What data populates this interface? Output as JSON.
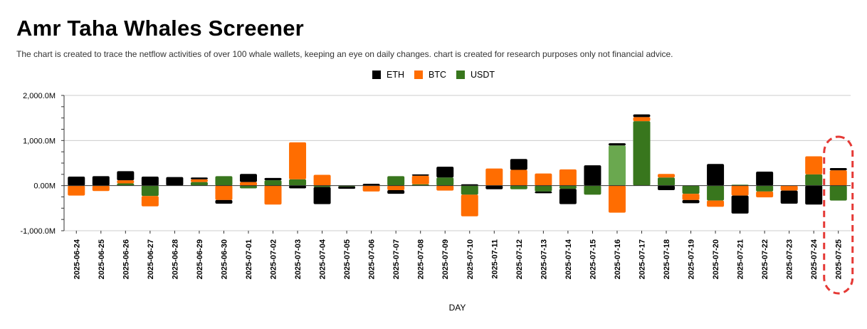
{
  "title": "Amr Taha Whales Screener",
  "subtitle": "The chart is created to trace the netflow activities of over 100 whale wallets, keeping an eye on daily changes.  chart is created for research purposes only not financial advice.",
  "colors": {
    "ETH": "#000000",
    "BTC": "#ff6d01",
    "USDT": "#38761d",
    "USDT_highlight": "#6aa84f",
    "annotation": "#e53935"
  },
  "chart_data": {
    "type": "bar",
    "stacked": true,
    "title": "",
    "xlabel": "DAY",
    "ylabel": "",
    "ylim": [
      -1000,
      2000
    ],
    "yticks": [
      2000,
      1000,
      0,
      -1000
    ],
    "ytick_labels": [
      "2,000.0M",
      "1,000.0M",
      "0.00M",
      "-1,000.0M"
    ],
    "grid": true,
    "legend_position": "top-center",
    "categories": [
      "2025-06-24",
      "2025-06-25",
      "2025-06-26",
      "2025-06-27",
      "2025-06-28",
      "2025-06-29",
      "2025-06-30",
      "2025-07-01",
      "2025-07-02",
      "2025-07-03",
      "2025-07-04",
      "2025-07-05",
      "2025-07-06",
      "2025-07-07",
      "2025-07-08",
      "2025-07-09",
      "2025-07-10",
      "2025-07-11",
      "2025-07-12",
      "2025-07-13",
      "2025-07-14",
      "2025-07-15",
      "2025-07-16",
      "2025-07-17",
      "2025-07-18",
      "2025-07-19",
      "2025-07-20",
      "2025-07-21",
      "2025-07-22",
      "2025-07-23",
      "2025-07-24",
      "2025-07-25"
    ],
    "series": [
      {
        "name": "ETH",
        "values": [
          200,
          210,
          200,
          200,
          190,
          40,
          -80,
          180,
          50,
          -60,
          -380,
          -50,
          40,
          -80,
          30,
          240,
          30,
          -80,
          240,
          -40,
          -340,
          450,
          50,
          60,
          -100,
          -70,
          480,
          -400,
          310,
          -290,
          -420,
          50
        ]
      },
      {
        "name": "BTC",
        "values": [
          -220,
          -120,
          70,
          -230,
          0,
          60,
          -320,
          80,
          -420,
          820,
          240,
          0,
          -130,
          -100,
          190,
          -110,
          -480,
          380,
          350,
          270,
          360,
          0,
          -600,
          90,
          80,
          -140,
          -140,
          -220,
          -130,
          -110,
          400,
          340
        ]
      },
      {
        "name": "USDT",
        "values": [
          0,
          0,
          50,
          -230,
          0,
          80,
          210,
          -60,
          120,
          140,
          -30,
          -20,
          0,
          210,
          30,
          180,
          -200,
          0,
          -80,
          -130,
          -70,
          -200,
          890,
          1430,
          180,
          -180,
          -330,
          20,
          -130,
          0,
          250,
          -330
        ]
      }
    ],
    "highlighted_category": "2025-07-25",
    "highlighted_bar": {
      "category": "2025-07-16",
      "series": "USDT"
    }
  }
}
